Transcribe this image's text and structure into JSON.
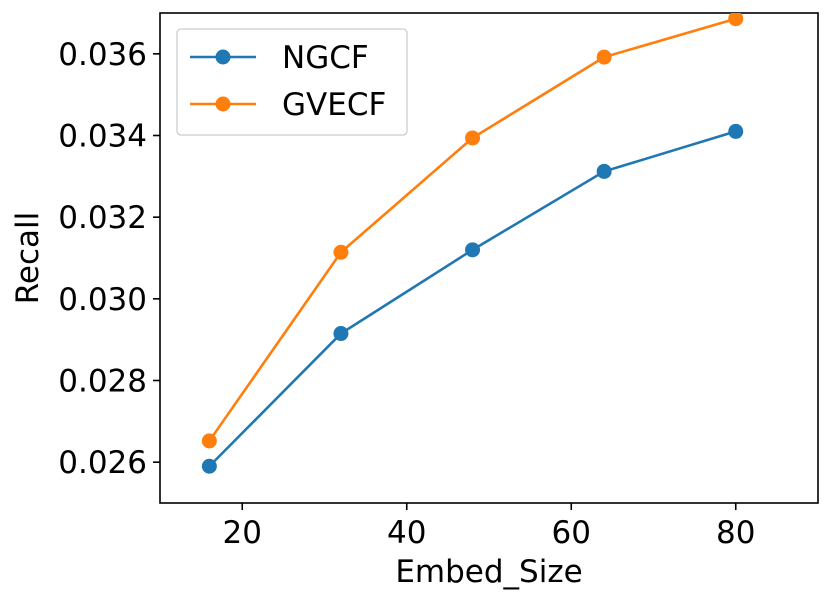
{
  "chart_data": {
    "type": "line",
    "title": "",
    "xlabel": "Embed_Size",
    "ylabel": "Recall",
    "x": [
      16,
      32,
      48,
      64,
      80
    ],
    "xlim": [
      10,
      90
    ],
    "ylim": [
      0.025,
      0.037
    ],
    "xticks": [
      20,
      40,
      60,
      80
    ],
    "xtick_labels": [
      "20",
      "40",
      "60",
      "80"
    ],
    "yticks": [
      0.026,
      0.028,
      0.03,
      0.032,
      0.034,
      0.036
    ],
    "ytick_labels": [
      "0.026",
      "0.028",
      "0.030",
      "0.032",
      "0.034",
      "0.036"
    ],
    "grid": false,
    "legend_position": "top-left",
    "series": [
      {
        "name": "NGCF",
        "color": "#1f77b4",
        "marker": "circle",
        "values": [
          0.0259,
          0.02915,
          0.0312,
          0.03312,
          0.0341
        ]
      },
      {
        "name": "GVECF",
        "color": "#ff7f0e",
        "marker": "circle",
        "values": [
          0.02652,
          0.03114,
          0.03394,
          0.03592,
          0.03686
        ]
      }
    ]
  }
}
